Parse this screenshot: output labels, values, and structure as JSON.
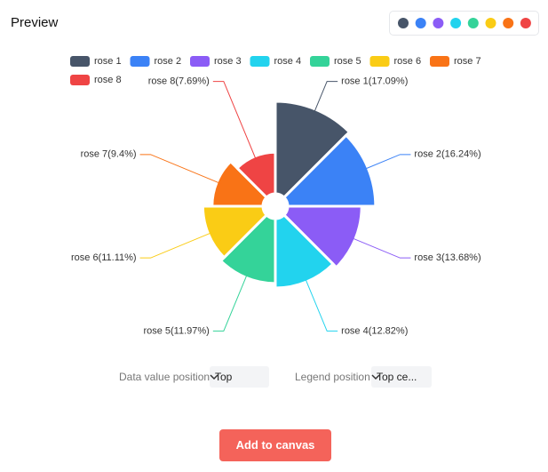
{
  "header": {
    "title": "Preview"
  },
  "chart_data": {
    "type": "rose",
    "categories": [
      "rose 1",
      "rose 2",
      "rose 3",
      "rose 4",
      "rose 5",
      "rose 6",
      "rose 7",
      "rose 8"
    ],
    "values": [
      17.09,
      16.24,
      13.68,
      12.82,
      11.97,
      11.11,
      9.4,
      7.69
    ],
    "value_labels": [
      "rose 1(17.09%)",
      "rose 2(16.24%)",
      "rose 3(13.68%)",
      "rose 4(12.82%)",
      "rose 5(11.97%)",
      "rose 6(11.11%)",
      "rose 7(9.4%)",
      "rose 8(7.69%)"
    ],
    "colors": [
      "#475569",
      "#3b82f6",
      "#8b5cf6",
      "#22d3ee",
      "#34d399",
      "#facc15",
      "#f97316",
      "#ef4444"
    ],
    "legend": "top"
  },
  "controls": [
    {
      "label": "Data value position",
      "value": "Top"
    },
    {
      "label": "Legend position",
      "value": "Top ce..."
    }
  ],
  "button": "Add to canvas"
}
